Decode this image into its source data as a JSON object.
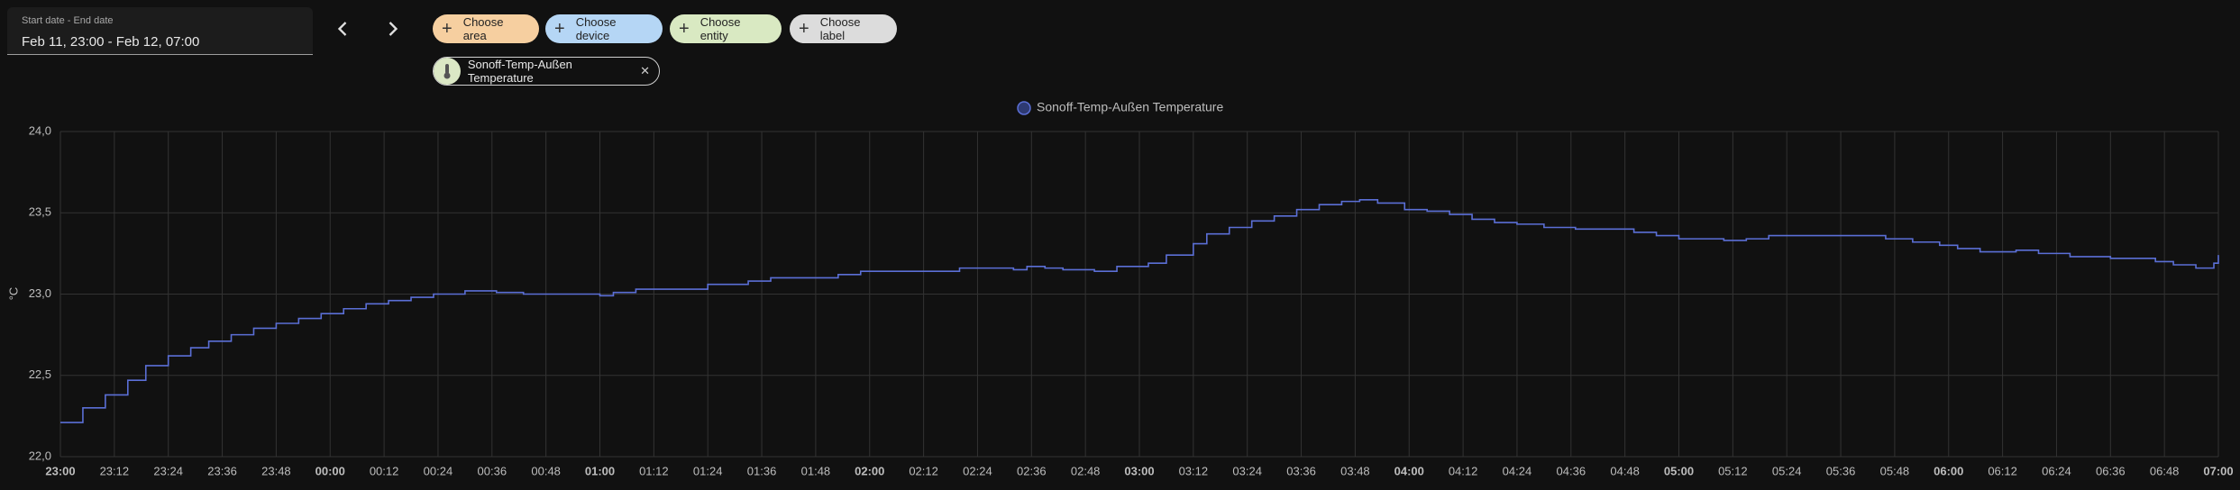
{
  "ui": {
    "date_label": "Start date - End date",
    "date_value": "Feb 11, 23:00 - Feb 12, 07:00",
    "chips": [
      "Choose area",
      "Choose device",
      "Choose entity",
      "Choose label"
    ],
    "chip_colors": [
      "#f6cfa0",
      "#b5d6f5",
      "#d9e9c2",
      "#dcdcdc"
    ],
    "entity_chip": "Sonoff-Temp-Außen Temperature"
  },
  "chart_data": {
    "type": "line",
    "step": true,
    "grid": true,
    "legend": "top",
    "ylabel": "°C",
    "x": [
      "23:00",
      "23:05",
      "23:10",
      "23:15",
      "23:19",
      "23:24",
      "23:29",
      "23:33",
      "23:38",
      "23:43",
      "23:48",
      "23:53",
      "23:58",
      "00:03",
      "00:08",
      "00:13",
      "00:18",
      "00:23",
      "00:30",
      "00:37",
      "00:43",
      "01:00",
      "01:03",
      "01:08",
      "01:24",
      "01:33",
      "01:38",
      "01:53",
      "01:58",
      "02:20",
      "02:32",
      "02:35",
      "02:39",
      "02:43",
      "02:50",
      "02:55",
      "03:02",
      "03:06",
      "03:12",
      "03:15",
      "03:20",
      "03:25",
      "03:30",
      "03:35",
      "03:40",
      "03:45",
      "03:49",
      "03:53",
      "03:59",
      "04:04",
      "04:09",
      "04:14",
      "04:19",
      "04:24",
      "04:30",
      "04:37",
      "04:50",
      "04:55",
      "05:00",
      "05:10",
      "05:15",
      "05:20",
      "05:36",
      "05:46",
      "05:52",
      "05:58",
      "06:02",
      "06:07",
      "06:15",
      "06:20",
      "06:27",
      "06:36",
      "06:46",
      "06:50",
      "06:55",
      "06:59",
      "07:00"
    ],
    "series": [
      {
        "name": "Sonoff-Temp-Außen Temperature",
        "color": "#5b6fd6",
        "values": [
          22.21,
          22.3,
          22.38,
          22.47,
          22.56,
          22.62,
          22.67,
          22.71,
          22.75,
          22.79,
          22.82,
          22.85,
          22.88,
          22.91,
          22.94,
          22.96,
          22.98,
          23.0,
          23.02,
          23.01,
          23.0,
          22.99,
          23.01,
          23.03,
          23.06,
          23.08,
          23.1,
          23.12,
          23.14,
          23.16,
          23.15,
          23.17,
          23.16,
          23.15,
          23.14,
          23.17,
          23.19,
          23.24,
          23.31,
          23.37,
          23.41,
          23.45,
          23.48,
          23.52,
          23.55,
          23.57,
          23.58,
          23.56,
          23.52,
          23.51,
          23.49,
          23.46,
          23.44,
          23.43,
          23.41,
          23.4,
          23.38,
          23.36,
          23.34,
          23.33,
          23.34,
          23.36,
          23.36,
          23.34,
          23.32,
          23.3,
          23.28,
          23.26,
          23.27,
          23.25,
          23.23,
          23.22,
          23.2,
          23.18,
          23.16,
          23.19,
          23.24
        ]
      }
    ],
    "xlim": [
      "23:00",
      "07:00"
    ],
    "xticks": [
      "23:00",
      "23:12",
      "23:24",
      "23:36",
      "23:48",
      "00:00",
      "00:12",
      "00:24",
      "00:36",
      "00:48",
      "01:00",
      "01:12",
      "01:24",
      "01:36",
      "01:48",
      "02:00",
      "02:12",
      "02:24",
      "02:36",
      "02:48",
      "03:00",
      "03:12",
      "03:24",
      "03:36",
      "03:48",
      "04:00",
      "04:12",
      "04:24",
      "04:36",
      "04:48",
      "05:00",
      "05:12",
      "05:24",
      "05:36",
      "05:48",
      "06:00",
      "06:12",
      "06:24",
      "06:36",
      "06:48",
      "07:00"
    ],
    "ylim": [
      22,
      24
    ],
    "yticks": [
      {
        "value": 22,
        "label": "22,0"
      },
      {
        "value": 22.5,
        "label": "22,5"
      },
      {
        "value": 23,
        "label": "23,0"
      },
      {
        "value": 23.5,
        "label": "23,5"
      },
      {
        "value": 24,
        "label": "24,0"
      }
    ]
  }
}
